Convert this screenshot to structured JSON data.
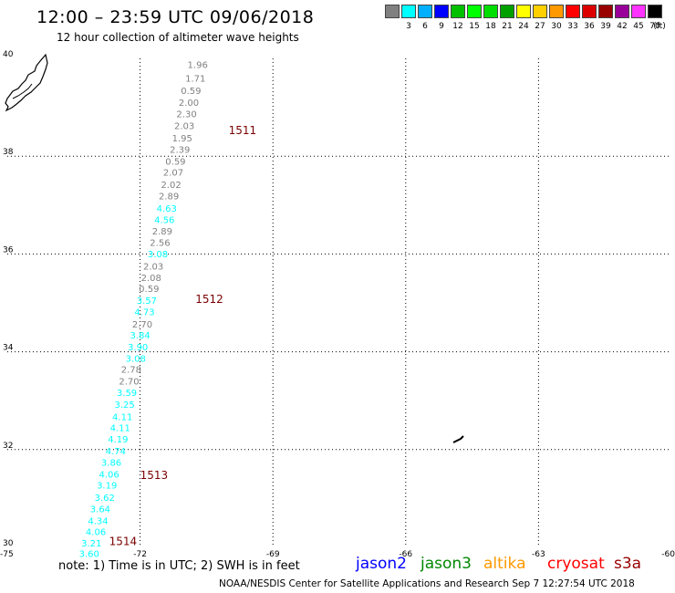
{
  "header": {
    "title": "12:00 – 23:59 UTC 09/06/2018",
    "subtitle": "12 hour collection of altimeter wave heights"
  },
  "legend": {
    "unit": "(ft)",
    "entries": [
      {
        "label": "",
        "color": "#808080"
      },
      {
        "label": "3",
        "color": "#00ffff"
      },
      {
        "label": "6",
        "color": "#00b0ff"
      },
      {
        "label": "9",
        "color": "#0000ff"
      },
      {
        "label": "12",
        "color": "#00c000"
      },
      {
        "label": "15",
        "color": "#00ff00"
      },
      {
        "label": "18",
        "color": "#00dd00"
      },
      {
        "label": "21",
        "color": "#00a000"
      },
      {
        "label": "24",
        "color": "#ffff00"
      },
      {
        "label": "27",
        "color": "#ffd000"
      },
      {
        "label": "30",
        "color": "#ff9900"
      },
      {
        "label": "33",
        "color": "#ff0000"
      },
      {
        "label": "36",
        "color": "#dd0000"
      },
      {
        "label": "39",
        "color": "#990000"
      },
      {
        "label": "42",
        "color": "#990099"
      },
      {
        "label": "45",
        "color": "#ff33ff"
      },
      {
        "label": "70",
        "color": "#000000"
      }
    ]
  },
  "chart_data": {
    "type": "scatter",
    "title": "12:00 – 23:59 UTC 09/06/2018",
    "subtitle": "12 hour collection of altimeter wave heights",
    "xlim": [
      -75,
      -60
    ],
    "ylim": [
      30,
      40
    ],
    "x_ticks": [
      "-75",
      "-72",
      "-69",
      "-66",
      "-63",
      "-60"
    ],
    "y_ticks": [
      "30",
      "32",
      "34",
      "36",
      "38",
      "40"
    ],
    "grid": true,
    "pass_labels": [
      {
        "text": "1511",
        "lon": -70.0,
        "lat": 38.45
      },
      {
        "text": "1512",
        "lon": -70.75,
        "lat": 35.0
      },
      {
        "text": "1513",
        "lon": -72.0,
        "lat": 31.4
      },
      {
        "text": "1514",
        "lon": -72.7,
        "lat": 30.05
      }
    ],
    "points": [
      {
        "text": "1.96",
        "lon": -70.7,
        "lat": 39.8,
        "color": "#808080"
      },
      {
        "text": "1.71",
        "lon": -70.75,
        "lat": 39.52,
        "color": "#808080"
      },
      {
        "text": "0.59",
        "lon": -70.85,
        "lat": 39.27,
        "color": "#808080"
      },
      {
        "text": "2.00",
        "lon": -70.9,
        "lat": 39.03,
        "color": "#808080"
      },
      {
        "text": "2.30",
        "lon": -70.95,
        "lat": 38.8,
        "color": "#808080"
      },
      {
        "text": "2.03",
        "lon": -71.0,
        "lat": 38.55,
        "color": "#808080"
      },
      {
        "text": "1.95",
        "lon": -71.05,
        "lat": 38.3,
        "color": "#808080"
      },
      {
        "text": "2.39",
        "lon": -71.1,
        "lat": 38.07,
        "color": "#808080"
      },
      {
        "text": "0.59",
        "lon": -71.2,
        "lat": 37.83,
        "color": "#808080"
      },
      {
        "text": "2.07",
        "lon": -71.25,
        "lat": 37.6,
        "color": "#808080"
      },
      {
        "text": "2.02",
        "lon": -71.3,
        "lat": 37.35,
        "color": "#808080"
      },
      {
        "text": "2.89",
        "lon": -71.35,
        "lat": 37.12,
        "color": "#808080"
      },
      {
        "text": "4.63",
        "lon": -71.4,
        "lat": 36.87,
        "color": "#00ffff"
      },
      {
        "text": "4.56",
        "lon": -71.45,
        "lat": 36.63,
        "color": "#00ffff"
      },
      {
        "text": "2.89",
        "lon": -71.5,
        "lat": 36.4,
        "color": "#808080"
      },
      {
        "text": "2.56",
        "lon": -71.55,
        "lat": 36.17,
        "color": "#808080"
      },
      {
        "text": "3.08",
        "lon": -71.6,
        "lat": 35.93,
        "color": "#00ffff"
      },
      {
        "text": "2.03",
        "lon": -71.7,
        "lat": 35.68,
        "color": "#808080"
      },
      {
        "text": "2.08",
        "lon": -71.75,
        "lat": 35.45,
        "color": "#808080"
      },
      {
        "text": "0.59",
        "lon": -71.8,
        "lat": 35.22,
        "color": "#808080"
      },
      {
        "text": "3.57",
        "lon": -71.85,
        "lat": 34.98,
        "color": "#00ffff"
      },
      {
        "text": "4.73",
        "lon": -71.9,
        "lat": 34.75,
        "color": "#00ffff"
      },
      {
        "text": "2.70",
        "lon": -71.95,
        "lat": 34.5,
        "color": "#808080"
      },
      {
        "text": "3.84",
        "lon": -72.0,
        "lat": 34.27,
        "color": "#00ffff"
      },
      {
        "text": "3.90",
        "lon": -72.05,
        "lat": 34.03,
        "color": "#00ffff"
      },
      {
        "text": "3.08",
        "lon": -72.1,
        "lat": 33.8,
        "color": "#00ffff"
      },
      {
        "text": "2.78",
        "lon": -72.2,
        "lat": 33.57,
        "color": "#808080"
      },
      {
        "text": "2.70",
        "lon": -72.25,
        "lat": 33.33,
        "color": "#808080"
      },
      {
        "text": "3.59",
        "lon": -72.3,
        "lat": 33.1,
        "color": "#00ffff"
      },
      {
        "text": "3.25",
        "lon": -72.35,
        "lat": 32.85,
        "color": "#00ffff"
      },
      {
        "text": "4.11",
        "lon": -72.4,
        "lat": 32.6,
        "color": "#00ffff"
      },
      {
        "text": "4.11",
        "lon": -72.45,
        "lat": 32.38,
        "color": "#00ffff"
      },
      {
        "text": "4.19",
        "lon": -72.5,
        "lat": 32.15,
        "color": "#00ffff"
      },
      {
        "text": "4.74",
        "lon": -72.55,
        "lat": 31.9,
        "color": "#00ffff"
      },
      {
        "text": "3.86",
        "lon": -72.65,
        "lat": 31.67,
        "color": "#00ffff"
      },
      {
        "text": "4.06",
        "lon": -72.7,
        "lat": 31.43,
        "color": "#00ffff"
      },
      {
        "text": "3.19",
        "lon": -72.75,
        "lat": 31.2,
        "color": "#00ffff"
      },
      {
        "text": "3.62",
        "lon": -72.8,
        "lat": 30.95,
        "color": "#00ffff"
      },
      {
        "text": "3.64",
        "lon": -72.9,
        "lat": 30.72,
        "color": "#00ffff"
      },
      {
        "text": "4.34",
        "lon": -72.95,
        "lat": 30.48,
        "color": "#00ffff"
      },
      {
        "text": "4.06",
        "lon": -73.0,
        "lat": 30.25,
        "color": "#00ffff"
      },
      {
        "text": "3.21",
        "lon": -73.1,
        "lat": 30.02,
        "color": "#00ffff"
      },
      {
        "text": "3.60",
        "lon": -73.15,
        "lat": 29.8,
        "color": "#00ffff"
      }
    ]
  },
  "note": "note:  1) Time is in UTC; 2) SWH is in feet",
  "satellites": [
    {
      "name": "jason2",
      "color": "#0000ff"
    },
    {
      "name": "jason3",
      "color": "#008800"
    },
    {
      "name": "altika",
      "color": "#ff9900"
    },
    {
      "name": "cryosat",
      "color": "#ff0000"
    },
    {
      "name": "s3a",
      "color": "#990000"
    }
  ],
  "footer": "NOAA/NESDIS Center for Satellite Applications and Research    Sep  7 12:27:54 UTC 2018"
}
